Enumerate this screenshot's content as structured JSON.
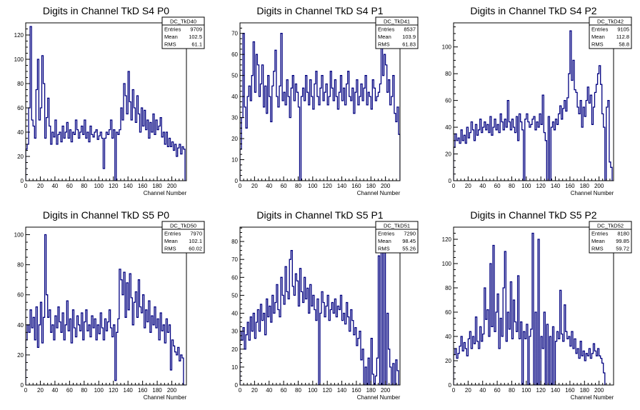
{
  "chart_data": [
    {
      "type": "histogram",
      "title": "Digits in Channel TkD S4 P0",
      "xlabel": "Channel Number",
      "ylabel": "",
      "xlim": [
        0,
        220
      ],
      "ylim": [
        0,
        130
      ],
      "xticks": [
        0,
        20,
        40,
        60,
        80,
        100,
        120,
        140,
        160,
        180,
        200
      ],
      "yticks": [
        0,
        20,
        40,
        60,
        80,
        100,
        120
      ],
      "stats": {
        "name": "DC_TkD40",
        "Entries": "9709",
        "Mean": "102.5",
        "RMS": "61.1"
      },
      "bin_width": 2,
      "values": [
        26,
        30,
        60,
        127,
        50,
        45,
        35,
        75,
        100,
        50,
        60,
        103,
        80,
        35,
        52,
        68,
        45,
        30,
        40,
        36,
        50,
        30,
        38,
        40,
        32,
        45,
        35,
        40,
        48,
        35,
        42,
        32,
        40,
        38,
        50,
        42,
        35,
        40,
        45,
        38,
        50,
        35,
        40,
        32,
        45,
        38,
        36,
        40,
        42,
        34,
        37,
        40,
        35,
        10,
        35,
        40,
        38,
        42,
        50,
        35,
        42,
        0,
        40,
        38,
        42,
        60,
        50,
        80,
        70,
        55,
        90,
        65,
        50,
        75,
        60,
        48,
        70,
        55,
        40,
        60,
        45,
        58,
        42,
        50,
        35,
        48,
        40,
        55,
        38,
        50,
        42,
        45,
        52,
        36,
        40,
        30,
        40,
        28,
        35,
        28,
        32,
        25,
        30,
        20,
        27,
        30,
        22,
        28,
        26
      ]
    },
    {
      "type": "histogram",
      "title": "Digits in Channel TkD S4 P1",
      "xlabel": "Channel Number",
      "ylabel": "",
      "xlim": [
        0,
        220
      ],
      "ylim": [
        0,
        75
      ],
      "xticks": [
        0,
        20,
        40,
        60,
        80,
        100,
        120,
        140,
        160,
        180,
        200
      ],
      "yticks": [
        0,
        10,
        20,
        30,
        40,
        50,
        60,
        70
      ],
      "stats": {
        "name": "DC_TkD41",
        "Entries": "8537",
        "Mean": "103.9",
        "RMS": "61.83"
      },
      "bin_width": 2,
      "values": [
        15,
        30,
        70,
        35,
        25,
        40,
        45,
        38,
        50,
        66,
        42,
        60,
        55,
        40,
        46,
        55,
        35,
        45,
        32,
        50,
        40,
        28,
        45,
        52,
        62,
        40,
        35,
        45,
        70,
        38,
        42,
        36,
        48,
        40,
        30,
        44,
        50,
        38,
        46,
        42,
        35,
        0,
        40,
        44,
        38,
        50,
        42,
        36,
        48,
        40,
        34,
        46,
        52,
        40,
        36,
        44,
        50,
        38,
        42,
        46,
        36,
        40,
        52,
        44,
        38,
        48,
        40,
        34,
        42,
        50,
        38,
        44,
        36,
        46,
        52,
        40,
        38,
        44,
        32,
        42,
        48,
        36,
        40,
        46,
        38,
        44,
        50,
        36,
        42,
        40,
        34,
        48,
        44,
        38,
        40,
        42,
        46,
        70,
        50,
        60,
        55,
        42,
        48,
        36,
        40,
        50,
        32,
        28,
        35,
        22
      ]
    },
    {
      "type": "histogram",
      "title": "Digits in Channel TkD S4 P2",
      "xlabel": "Channel Number",
      "ylabel": "",
      "xlim": [
        0,
        220
      ],
      "ylim": [
        0,
        118
      ],
      "xticks": [
        0,
        20,
        40,
        60,
        80,
        100,
        120,
        140,
        160,
        180,
        200
      ],
      "yticks": [
        0,
        20,
        40,
        60,
        80,
        100
      ],
      "stats": {
        "name": "DC_TkD42",
        "Entries": "9105",
        "Mean": "112.8",
        "RMS": "58.8"
      },
      "bin_width": 2,
      "values": [
        25,
        35,
        30,
        32,
        28,
        38,
        30,
        34,
        28,
        40,
        32,
        36,
        44,
        38,
        30,
        42,
        34,
        38,
        46,
        36,
        40,
        44,
        38,
        42,
        36,
        48,
        34,
        40,
        46,
        38,
        42,
        36,
        50,
        44,
        38,
        46,
        40,
        60,
        44,
        38,
        46,
        40,
        36,
        48,
        30,
        50,
        44,
        38,
        0,
        46,
        50,
        44,
        40,
        42,
        46,
        48,
        38,
        44,
        40,
        50,
        42,
        64,
        36,
        30,
        0,
        48,
        0,
        40,
        44,
        38,
        46,
        42,
        50,
        56,
        46,
        54,
        60,
        52,
        62,
        80,
        112,
        75,
        90,
        68,
        66,
        55,
        50,
        60,
        40,
        55,
        48,
        60,
        70,
        58,
        64,
        42,
        55,
        66,
        72,
        80,
        86,
        72,
        50,
        40,
        0,
        55,
        60,
        14,
        10
      ]
    },
    {
      "type": "histogram",
      "title": "Digits in Channel TkD S5 P0",
      "xlabel": "Channel Number",
      "ylabel": "",
      "xlim": [
        0,
        220
      ],
      "ylim": [
        0,
        105
      ],
      "xticks": [
        0,
        20,
        40,
        60,
        80,
        100,
        120,
        140,
        160,
        180,
        200
      ],
      "yticks": [
        0,
        20,
        40,
        60,
        80,
        100
      ],
      "stats": {
        "name": "DC_TkD50",
        "Entries": "7970",
        "Mean": "102.1",
        "RMS": "60.02"
      },
      "bin_width": 2,
      "values": [
        30,
        40,
        35,
        50,
        38,
        45,
        30,
        52,
        25,
        40,
        55,
        28,
        45,
        100,
        60,
        45,
        50,
        35,
        40,
        30,
        46,
        38,
        52,
        42,
        35,
        48,
        30,
        40,
        56,
        36,
        44,
        28,
        50,
        38,
        32,
        46,
        40,
        36,
        48,
        30,
        42,
        50,
        36,
        40,
        32,
        46,
        38,
        44,
        30,
        40,
        34,
        48,
        38,
        30,
        44,
        36,
        42,
        50,
        38,
        32,
        40,
        3,
        35,
        44,
        77,
        70,
        60,
        75,
        45,
        68,
        50,
        74,
        58,
        40,
        55,
        62,
        45,
        70,
        52,
        48,
        60,
        38,
        50,
        42,
        56,
        35,
        46,
        40,
        52,
        38,
        44,
        30,
        48,
        36,
        40,
        28,
        44,
        35,
        40,
        10,
        30,
        26,
        22,
        20,
        25,
        16,
        20,
        18,
        0
      ]
    },
    {
      "type": "histogram",
      "title": "Digits in Channel TkD S5 P1",
      "xlabel": "Channel Number",
      "ylabel": "",
      "xlim": [
        0,
        220
      ],
      "ylim": [
        0,
        88
      ],
      "xticks": [
        0,
        20,
        40,
        60,
        80,
        100,
        120,
        140,
        160,
        180,
        200
      ],
      "yticks": [
        0,
        10,
        20,
        30,
        40,
        50,
        60,
        70,
        80
      ],
      "stats": {
        "name": "DC_TkD51",
        "Entries": "7290",
        "Mean": "98.45",
        "RMS": "55.26"
      },
      "bin_width": 2,
      "values": [
        30,
        25,
        32,
        20,
        28,
        35,
        25,
        38,
        30,
        40,
        26,
        35,
        42,
        30,
        45,
        36,
        40,
        28,
        48,
        38,
        44,
        35,
        50,
        40,
        46,
        56,
        42,
        38,
        60,
        50,
        45,
        66,
        52,
        48,
        70,
        75,
        55,
        50,
        62,
        58,
        44,
        65,
        52,
        46,
        60,
        48,
        54,
        40,
        56,
        44,
        50,
        42,
        36,
        48,
        0,
        40,
        52,
        46,
        38,
        44,
        50,
        36,
        42,
        46,
        40,
        48,
        38,
        44,
        42,
        50,
        36,
        40,
        34,
        46,
        38,
        30,
        42,
        36,
        28,
        32,
        22,
        26,
        30,
        14,
        20,
        0,
        10,
        0,
        15,
        0,
        26,
        6,
        0,
        5,
        15,
        72,
        0,
        88,
        0,
        75,
        0,
        40,
        20,
        10,
        0,
        12,
        0,
        14,
        8
      ]
    },
    {
      "type": "histogram",
      "title": "Digits in Channel TkD S5 P2",
      "xlabel": "Channel Number",
      "ylabel": "",
      "xlim": [
        0,
        220
      ],
      "ylim": [
        0,
        130
      ],
      "xticks": [
        0,
        20,
        40,
        60,
        80,
        100,
        120,
        140,
        160,
        180,
        200
      ],
      "yticks": [
        0,
        20,
        40,
        60,
        80,
        100,
        120
      ],
      "stats": {
        "name": "DC_TkD52",
        "Entries": "8180",
        "Mean": "99.85",
        "RMS": "59.72"
      },
      "bin_width": 2,
      "values": [
        25,
        30,
        22,
        26,
        32,
        40,
        28,
        35,
        30,
        24,
        38,
        44,
        30,
        40,
        34,
        56,
        36,
        30,
        48,
        36,
        42,
        80,
        54,
        62,
        40,
        100,
        48,
        115,
        44,
        60,
        75,
        30,
        55,
        40,
        80,
        110,
        36,
        60,
        46,
        85,
        38,
        70,
        52,
        44,
        90,
        38,
        52,
        0,
        44,
        38,
        50,
        0,
        40,
        46,
        125,
        0,
        60,
        0,
        120,
        0,
        40,
        30,
        60,
        0,
        50,
        0,
        40,
        0,
        48,
        0,
        36,
        44,
        38,
        78,
        42,
        36,
        66,
        44,
        38,
        40,
        32,
        44,
        30,
        38,
        26,
        30,
        22,
        36,
        24,
        28,
        20,
        26,
        24,
        30,
        22,
        26,
        34,
        28,
        24,
        30,
        24,
        22,
        18,
        10
      ]
    }
  ]
}
